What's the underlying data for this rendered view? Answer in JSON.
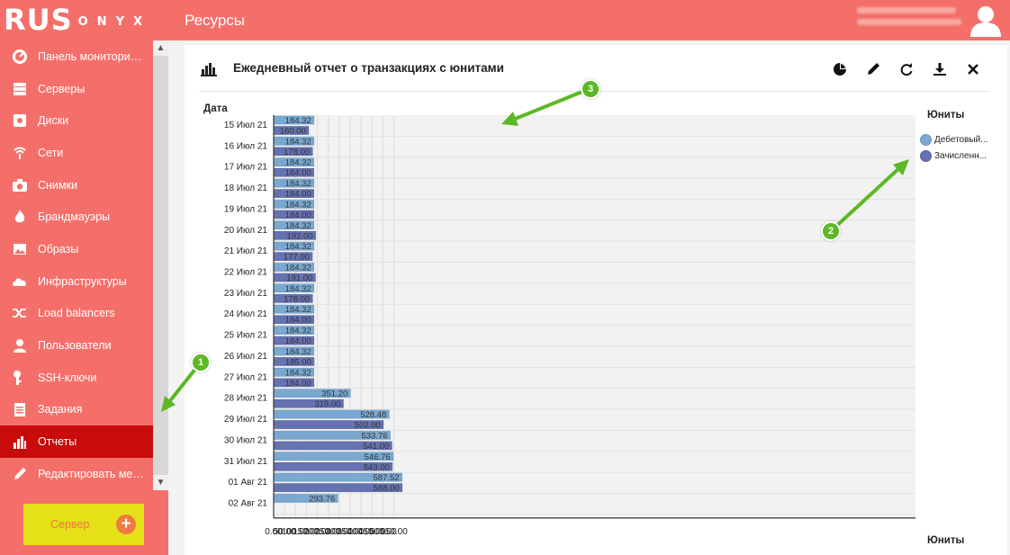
{
  "header": {
    "logo_main": "RUS",
    "logo_small": "ONYX",
    "page_title": "Ресурсы"
  },
  "sidebar": {
    "items": [
      {
        "label": "Панель мониторинга",
        "icon": "dashboard-icon"
      },
      {
        "label": "Серверы",
        "icon": "server-icon"
      },
      {
        "label": "Диски",
        "icon": "disk-icon"
      },
      {
        "label": "Сети",
        "icon": "network-icon"
      },
      {
        "label": "Снимки",
        "icon": "camera-icon"
      },
      {
        "label": "Брандмауэры",
        "icon": "fire-icon"
      },
      {
        "label": "Образы",
        "icon": "image-icon"
      },
      {
        "label": "Инфраструктуры",
        "icon": "cloud-icon"
      },
      {
        "label": "Load balancers",
        "icon": "shuffle-icon"
      },
      {
        "label": "Пользователи",
        "icon": "user-icon"
      },
      {
        "label": "SSH-ключи",
        "icon": "key-icon"
      },
      {
        "label": "Задания",
        "icon": "clipboard-icon"
      },
      {
        "label": "Отчеты",
        "icon": "bar-chart-icon",
        "active": true
      },
      {
        "label": "Редактировать меню",
        "icon": "pencil-icon"
      }
    ],
    "server_button": "Сервер"
  },
  "panel": {
    "title": "Ежедневный отчет о транзакциях с юнитами",
    "tools": [
      "pie-chart-icon",
      "pencil-icon",
      "refresh-icon",
      "download-icon",
      "close-icon"
    ]
  },
  "callouts": [
    "1",
    "2",
    "3"
  ],
  "colors": {
    "brand": "#f56f6a",
    "active": "#c80b0b",
    "debit": "#7aa8d0",
    "credit": "#6672b1",
    "callout": "#5cb825"
  },
  "chart_data": {
    "type": "bar",
    "orientation": "horizontal",
    "ylabel": "Дата",
    "xlabel": "Юниты",
    "legend_title": "Юниты",
    "legend_position": "right",
    "grid": true,
    "xlim": [
      0,
      590
    ],
    "xticks": [
      "0.00",
      "50.00",
      "100.00",
      "150.00",
      "200.00",
      "250.00",
      "300.00",
      "350.00",
      "400.00",
      "450.00",
      "500.00",
      "550.00"
    ],
    "categories": [
      "15 Июл 21",
      "16 Июл 21",
      "17 Июл 21",
      "18 Июл 21",
      "19 Июл 21",
      "20 Июл 21",
      "21 Июл 21",
      "22 Июл 21",
      "23 Июл 21",
      "24 Июл 21",
      "25 Июл 21",
      "26 Июл 21",
      "27 Июл 21",
      "28 Июл 21",
      "29 Июл 21",
      "30 Июл 21",
      "31 Июл 21",
      "01 Авг 21",
      "02 Авг 21"
    ],
    "series": [
      {
        "name": "Дебетовый...",
        "values": [
          184.32,
          184.32,
          184.32,
          184.32,
          184.32,
          184.32,
          184.32,
          184.32,
          184.32,
          184.32,
          184.32,
          184.32,
          184.32,
          351.2,
          528.48,
          533.76,
          546.76,
          587.52,
          293.76
        ]
      },
      {
        "name": "Зачисленн...",
        "values": [
          160.0,
          178.0,
          184.0,
          184.0,
          184.0,
          192.0,
          177.0,
          191.0,
          178.0,
          184.0,
          184.0,
          185.0,
          184.0,
          319.0,
          502.0,
          541.0,
          543.0,
          588.0,
          null
        ]
      }
    ]
  }
}
